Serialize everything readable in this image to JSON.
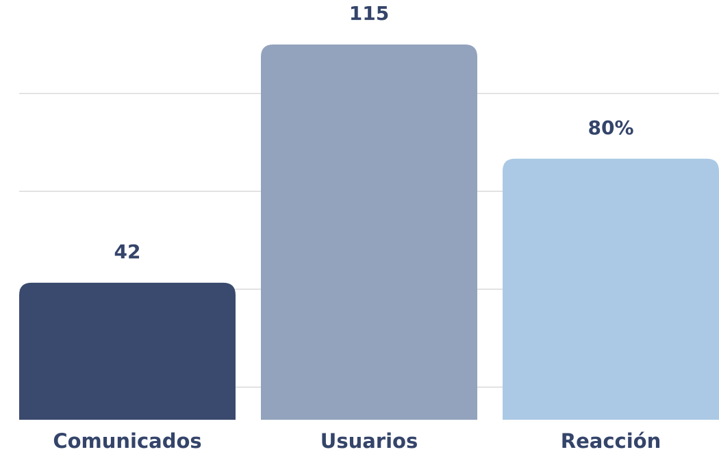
{
  "chart_data": {
    "type": "bar",
    "categories": [
      "Comunicados",
      "Usuarios",
      "Reacción"
    ],
    "values": [
      42,
      115,
      80
    ],
    "value_labels": [
      "42",
      "115",
      "80%"
    ],
    "colors": [
      "#3a4a6e",
      "#93a3bd",
      "#abc9e5"
    ],
    "ylim": [
      0,
      128
    ],
    "yticks": [
      10,
      40,
      70,
      100
    ],
    "grid": true
  }
}
